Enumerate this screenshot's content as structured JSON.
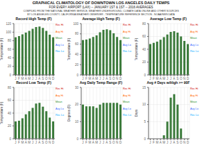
{
  "title": "GRAPHICAL CLIMATOLOGY OF DOWNTOWN LOS ANGELES DAILY TEMPS",
  "subtitle": [
    "FOR EVERY AIRPORT (LAX) -- JANUARY 1ST & 1ST -- 2016 AVERAGES",
    "COMPILED FROM THE NATIONAL WEATHER SERVICE, WEATHER UNDERGROUND, CLIMATE DATA ONLINE AND OTHER SOURCES",
    "BY LOS ANGELES COUNTY, CALIFORNIA WEATHER OBSERVER - TEMPERATURE REFERENCE SECTION - NOAA/NWS DATA"
  ],
  "chart_data": [
    {
      "type": "bar",
      "title": "Record High Temp (F)",
      "ylabel": "Temperature (F)",
      "categories": [
        "J",
        "F",
        "M",
        "A",
        "M",
        "J",
        "J",
        "A",
        "S",
        "O",
        "N",
        "D"
      ],
      "values": [
        88,
        91,
        95,
        99,
        103,
        108,
        112,
        113,
        110,
        103,
        94,
        88
      ],
      "color": "#3a7a3a",
      "ylim": [
        0,
        120
      ],
      "yticks": [
        0,
        20,
        40,
        60,
        80,
        100,
        120
      ],
      "grid": true,
      "annotations": [
        "Rec Hi",
        "Avg Hi",
        "Mean",
        "Avg Lo",
        "Rec Lo"
      ]
    },
    {
      "type": "bar",
      "title": "Average High Temp (F)",
      "ylabel": "Temperature (F)",
      "categories": [
        "J",
        "F",
        "M",
        "A",
        "M",
        "J",
        "J",
        "A",
        "S",
        "O",
        "N",
        "D"
      ],
      "values": [
        68,
        69,
        71,
        74,
        77,
        83,
        88,
        89,
        87,
        81,
        74,
        68
      ],
      "color": "#3a7a3a",
      "ylim": [
        0,
        100
      ],
      "yticks": [
        0,
        20,
        40,
        60,
        80,
        100
      ],
      "grid": true,
      "annotations": [
        "Rec Hi",
        "Avg Hi",
        "Mean",
        "Avg Lo",
        "Rec Lo"
      ]
    },
    {
      "type": "bar",
      "title": "Average Low Temp (F)",
      "ylabel": "Temperature (F)",
      "categories": [
        "J",
        "F",
        "M",
        "A",
        "M",
        "J",
        "J",
        "A",
        "S",
        "O",
        "N",
        "D"
      ],
      "values": [
        48,
        50,
        52,
        55,
        59,
        63,
        67,
        68,
        66,
        60,
        53,
        48
      ],
      "color": "#3a7a3a",
      "ylim": [
        0,
        80
      ],
      "yticks": [
        0,
        20,
        40,
        60,
        80
      ],
      "grid": true,
      "annotations": [
        "Rec Hi",
        "Avg Hi",
        "Mean",
        "Avg Lo",
        "Rec Lo"
      ]
    },
    {
      "type": "bar",
      "title": "Record Low Temp (F)",
      "ylabel": "Temperature (F)",
      "categories": [
        "J",
        "F",
        "M",
        "A",
        "M",
        "J",
        "J",
        "A",
        "S",
        "O",
        "N",
        "D"
      ],
      "values": [
        27,
        28,
        32,
        38,
        43,
        48,
        55,
        56,
        50,
        43,
        33,
        27
      ],
      "color": "#3a7a3a",
      "ylim": [
        0,
        80
      ],
      "yticks": [
        0,
        20,
        40,
        60,
        80
      ],
      "grid": true,
      "annotations": [
        "Rec Hi",
        "Avg Hi",
        "Mean",
        "Avg Lo",
        "Rec Lo"
      ]
    },
    {
      "type": "bar",
      "title": "Avg Daily Temp Range (F)",
      "ylabel": "Degrees (F)",
      "categories": [
        "J",
        "F",
        "M",
        "A",
        "M",
        "J",
        "J",
        "A",
        "S",
        "O",
        "N",
        "D"
      ],
      "values": [
        20,
        19,
        19,
        19,
        18,
        20,
        21,
        21,
        21,
        21,
        21,
        20
      ],
      "color": "#3a7a3a",
      "ylim": [
        0,
        30
      ],
      "yticks": [
        0,
        10,
        20,
        30
      ],
      "grid": true,
      "annotations": [
        "Rec Hi",
        "Avg Hi",
        "Mean",
        "Avg Lo",
        "Rec Lo"
      ]
    },
    {
      "type": "bar",
      "title": "Avg # Days w/High >= 90F",
      "ylabel": "Days",
      "categories": [
        "J",
        "F",
        "M",
        "A",
        "M",
        "J",
        "J",
        "A",
        "S",
        "O",
        "N",
        "D"
      ],
      "values": [
        0,
        0,
        0,
        0,
        1,
        5,
        12,
        13,
        10,
        3,
        0,
        0
      ],
      "color": "#3a7a3a",
      "ylim": [
        0,
        15
      ],
      "yticks": [
        0,
        5,
        10,
        15
      ],
      "grid": true,
      "annotations": [
        "Rec Hi",
        "Avg Hi",
        "Mean",
        "Avg Lo",
        "Rec Lo"
      ]
    }
  ]
}
